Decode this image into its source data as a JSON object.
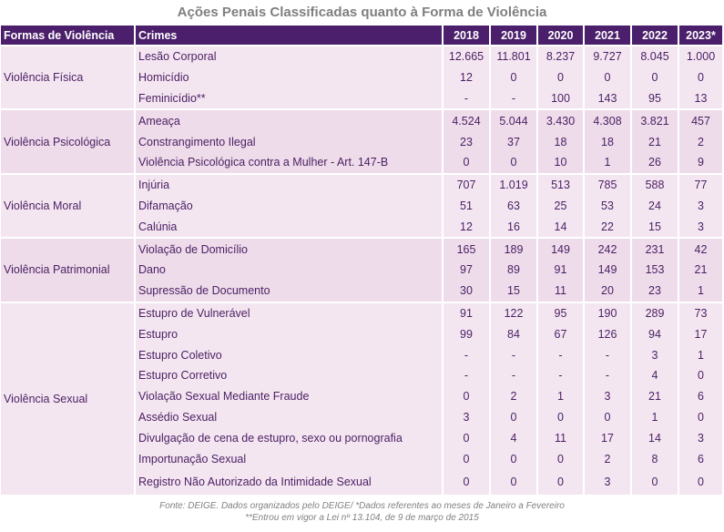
{
  "title": "Ações Penais Classificadas quanto à Forma de Violência",
  "headers": {
    "forma": "Formas de Violência",
    "crimes": "Crimes",
    "years": [
      "2018",
      "2019",
      "2020",
      "2021",
      "2022",
      "2023*"
    ]
  },
  "groups": [
    {
      "name": "Violência Física",
      "rows": [
        {
          "crime": "Lesão Corporal",
          "values": [
            "12.665",
            "11.801",
            "8.237",
            "9.727",
            "8.045",
            "1.000"
          ]
        },
        {
          "crime": "Homicídio",
          "values": [
            "12",
            "0",
            "0",
            "0",
            "0",
            "0"
          ]
        },
        {
          "crime": "Feminicídio**",
          "values": [
            "-",
            "-",
            "100",
            "143",
            "95",
            "13"
          ]
        }
      ]
    },
    {
      "name": "Violência Psicológica",
      "rows": [
        {
          "crime": "Ameaça",
          "values": [
            "4.524",
            "5.044",
            "3.430",
            "4.308",
            "3.821",
            "457"
          ]
        },
        {
          "crime": "Constrangimento Ilegal",
          "values": [
            "23",
            "37",
            "18",
            "18",
            "21",
            "2"
          ]
        },
        {
          "crime": "Violência Psicológica contra a Mulher - Art. 147-B",
          "values": [
            "0",
            "0",
            "10",
            "1",
            "26",
            "9"
          ]
        }
      ]
    },
    {
      "name": "Violência Moral",
      "rows": [
        {
          "crime": "Injúria",
          "values": [
            "707",
            "1.019",
            "513",
            "785",
            "588",
            "77"
          ]
        },
        {
          "crime": "Difamação",
          "values": [
            "51",
            "63",
            "25",
            "53",
            "24",
            "3"
          ]
        },
        {
          "crime": "Calúnia",
          "values": [
            "12",
            "16",
            "14",
            "22",
            "15",
            "3"
          ]
        }
      ]
    },
    {
      "name": "Violência Patrimonial",
      "rows": [
        {
          "crime": "Violação de Domicílio",
          "values": [
            "165",
            "189",
            "149",
            "242",
            "231",
            "42"
          ]
        },
        {
          "crime": "Dano",
          "values": [
            "97",
            "89",
            "91",
            "149",
            "153",
            "21"
          ]
        },
        {
          "crime": "Supressão de Documento",
          "values": [
            "30",
            "15",
            "11",
            "20",
            "23",
            "1"
          ]
        }
      ]
    },
    {
      "name": "Violência Sexual",
      "rows": [
        {
          "crime": "Estupro de Vulnerável",
          "values": [
            "91",
            "122",
            "95",
            "190",
            "289",
            "73"
          ]
        },
        {
          "crime": "Estupro",
          "values": [
            "99",
            "84",
            "67",
            "126",
            "94",
            "17"
          ]
        },
        {
          "crime": "Estupro Coletivo",
          "values": [
            "-",
            "-",
            "-",
            "-",
            "3",
            "1"
          ]
        },
        {
          "crime": "Estupro Corretivo",
          "values": [
            "-",
            "-",
            "-",
            "-",
            "4",
            "0"
          ]
        },
        {
          "crime": "Violação Sexual Mediante Fraude",
          "values": [
            "0",
            "2",
            "1",
            "3",
            "21",
            "6"
          ]
        },
        {
          "crime": "Assédio Sexual",
          "values": [
            "3",
            "0",
            "0",
            "0",
            "1",
            "0"
          ]
        },
        {
          "crime": "Divulgação de cena de estupro, sexo ou pornografia",
          "values": [
            "0",
            "4",
            "11",
            "17",
            "14",
            "3"
          ]
        },
        {
          "crime": "Importunação Sexual",
          "values": [
            "0",
            "0",
            "0",
            "2",
            "8",
            "6"
          ]
        },
        {
          "crime": "Registro Não Autorizado da Intimidade Sexual",
          "values": [
            "0",
            "0",
            "0",
            "3",
            "0",
            "0"
          ]
        }
      ]
    }
  ],
  "footer": {
    "line1": "Fonte: DEIGE. Dados organizados pelo DEIGE/ *Dados referentes ao meses de Janeiro a Fevereiro",
    "line2": "**Entrou em vigor a Lei nº 13.104, de 9 de março de 2015"
  }
}
